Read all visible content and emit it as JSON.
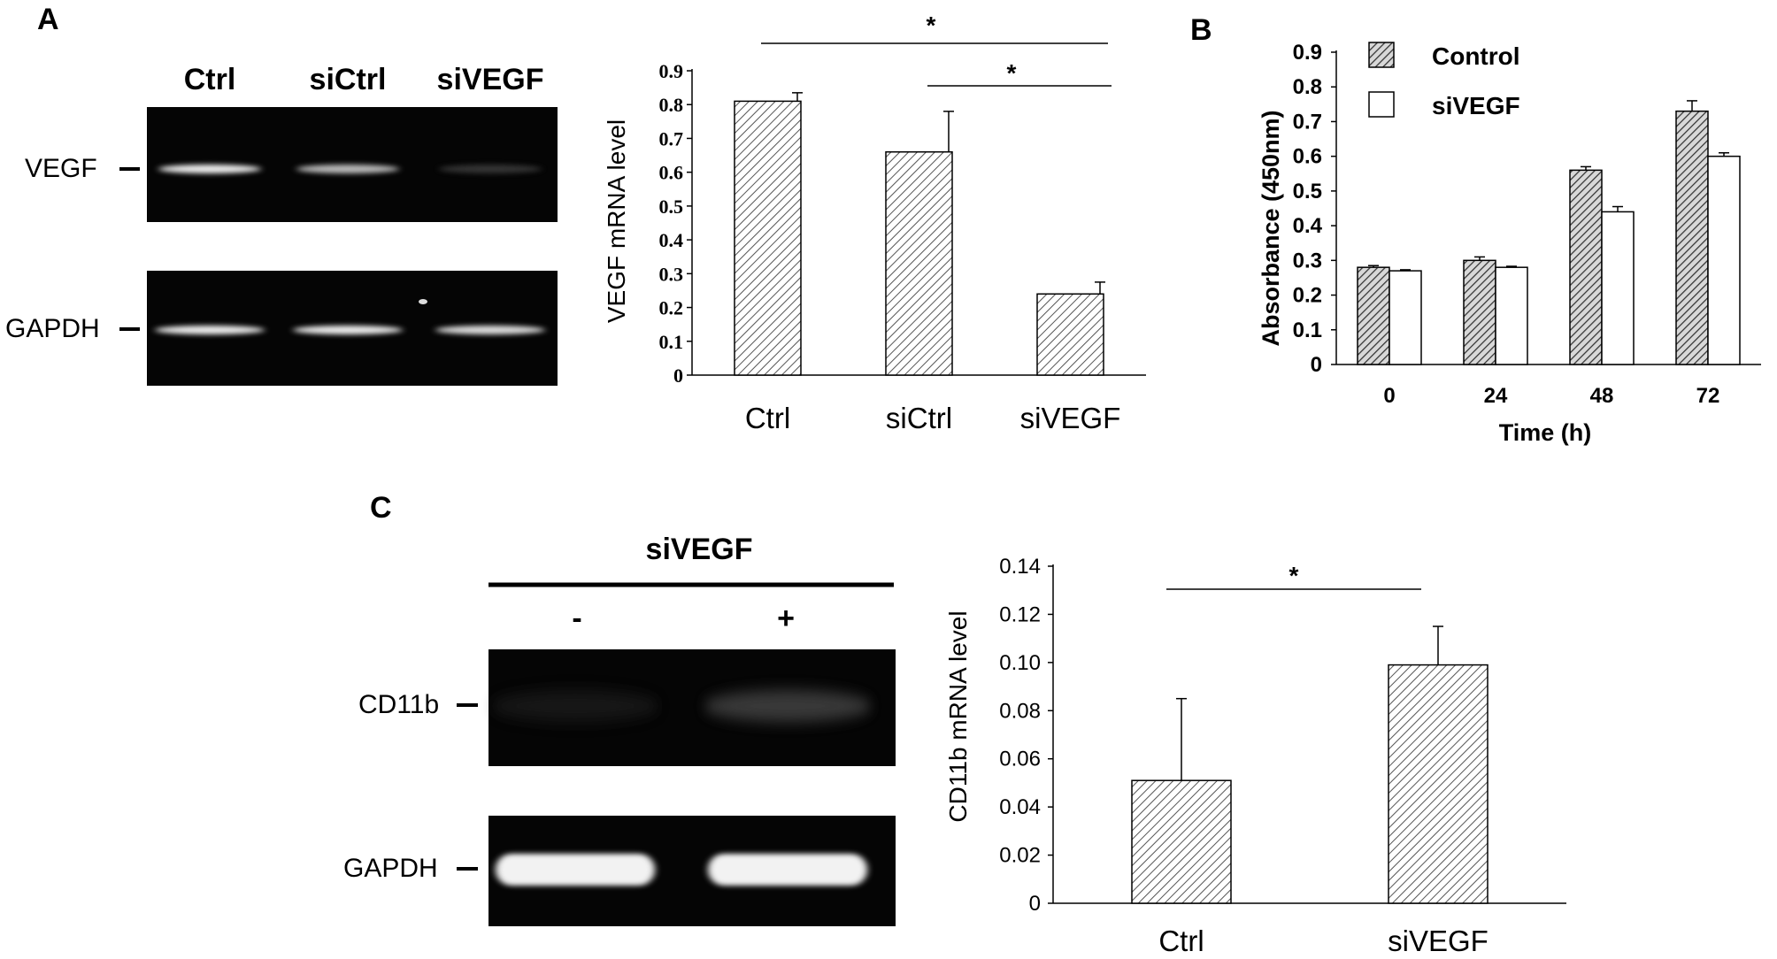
{
  "figure": {
    "panel_a": "A",
    "panel_b": "B",
    "panel_c": "C"
  },
  "gel_a": {
    "lanes": [
      "Ctrl",
      "siCtrl",
      "siVEGF"
    ],
    "bands": [
      "VEGF",
      "GAPDH"
    ],
    "intensities": {
      "VEGF": [
        0.95,
        0.8,
        0.25
      ],
      "GAPDH": [
        0.95,
        0.95,
        0.9
      ]
    }
  },
  "gel_c": {
    "header": "siVEGF",
    "lanes": [
      "-",
      "+"
    ],
    "bands": [
      "CD11b",
      "GAPDH"
    ],
    "intensities": {
      "CD11b": [
        0.15,
        0.45
      ],
      "GAPDH": [
        1.0,
        1.0
      ]
    }
  },
  "chart_data": [
    {
      "type": "bar",
      "panel": "A",
      "categories": [
        "Ctrl",
        "siCtrl",
        "siVEGF"
      ],
      "values": [
        0.81,
        0.66,
        0.24
      ],
      "errors": [
        0.025,
        0.12,
        0.035
      ],
      "ylabel": "VEGF mRNA level",
      "ylim": [
        0,
        0.9
      ],
      "yticks": [
        "0",
        "0.1",
        "0.2",
        "0.3",
        "0.4",
        "0.5",
        "0.6",
        "0.7",
        "0.8",
        "0.9"
      ],
      "significance": [
        {
          "from": "Ctrl",
          "to": "siVEGF",
          "label": "*"
        },
        {
          "from": "siCtrl",
          "to": "siVEGF",
          "label": "*"
        }
      ],
      "grid": false,
      "pattern": "diagonal-hatch"
    },
    {
      "type": "bar",
      "panel": "B",
      "categories": [
        "0",
        "24",
        "48",
        "72"
      ],
      "series": [
        {
          "name": "Control",
          "values": [
            0.28,
            0.3,
            0.56,
            0.73
          ],
          "errors": [
            0.005,
            0.01,
            0.01,
            0.03
          ]
        },
        {
          "name": "siVEGF",
          "values": [
            0.27,
            0.28,
            0.44,
            0.6
          ],
          "errors": [
            0.003,
            0.003,
            0.015,
            0.01
          ]
        }
      ],
      "xlabel": "Time (h)",
      "ylabel": "Absorbance (450nm)",
      "ylim": [
        0,
        0.9
      ],
      "yticks": [
        "0",
        "0.1",
        "0.2",
        "0.3",
        "0.4",
        "0.5",
        "0.6",
        "0.7",
        "0.8",
        "0.9"
      ],
      "legend_position": "top-left",
      "grid": false
    },
    {
      "type": "bar",
      "panel": "C",
      "categories": [
        "Ctrl",
        "siVEGF"
      ],
      "values": [
        0.051,
        0.099
      ],
      "errors": [
        0.034,
        0.016
      ],
      "ylabel": "CD11b mRNA level",
      "ylim": [
        0,
        0.14
      ],
      "yticks": [
        "0",
        "0.02",
        "0.04",
        "0.06",
        "0.08",
        "0.10",
        "0.12",
        "0.14"
      ],
      "significance": [
        {
          "from": "Ctrl",
          "to": "siVEGF",
          "label": "*"
        }
      ],
      "grid": false,
      "pattern": "diagonal-hatch"
    }
  ]
}
